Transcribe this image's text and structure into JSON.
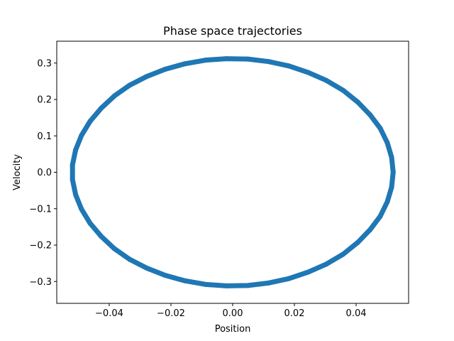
{
  "chart_data": {
    "type": "scatter",
    "title": "Phase space trajectories",
    "xlabel": "Position",
    "ylabel": "Velocity",
    "xlim": [
      -0.057,
      0.057
    ],
    "ylim": [
      -0.36,
      0.36
    ],
    "grid": false,
    "xticks": [
      {
        "value": -0.04,
        "label": "−0.04"
      },
      {
        "value": -0.02,
        "label": "−0.02"
      },
      {
        "value": 0.0,
        "label": "0.00"
      },
      {
        "value": 0.02,
        "label": "0.02"
      },
      {
        "value": 0.04,
        "label": "0.04"
      }
    ],
    "yticks": [
      {
        "value": 0.3,
        "label": "0.3"
      },
      {
        "value": 0.2,
        "label": "0.2"
      },
      {
        "value": 0.1,
        "label": "0.1"
      },
      {
        "value": 0.0,
        "label": "0.0"
      },
      {
        "value": -0.1,
        "label": "−0.1"
      },
      {
        "value": -0.2,
        "label": "−0.2"
      },
      {
        "value": -0.3,
        "label": "−0.3"
      }
    ],
    "series": [
      {
        "color": "#1f77b4",
        "points": [
          {
            "x": 0.052,
            "y": 0.0
          },
          {
            "x": 0.0515,
            "y": 0.041
          },
          {
            "x": 0.0501,
            "y": 0.081
          },
          {
            "x": 0.0478,
            "y": 0.121
          },
          {
            "x": 0.0445,
            "y": 0.158
          },
          {
            "x": 0.0405,
            "y": 0.193
          },
          {
            "x": 0.0358,
            "y": 0.225
          },
          {
            "x": 0.0304,
            "y": 0.252
          },
          {
            "x": 0.0245,
            "y": 0.274
          },
          {
            "x": 0.0182,
            "y": 0.292
          },
          {
            "x": 0.0117,
            "y": 0.304
          },
          {
            "x": 0.0049,
            "y": 0.311
          },
          {
            "x": -0.002,
            "y": 0.312
          },
          {
            "x": -0.0088,
            "y": 0.308
          },
          {
            "x": -0.0155,
            "y": 0.298
          },
          {
            "x": -0.0219,
            "y": 0.283
          },
          {
            "x": -0.0279,
            "y": 0.263
          },
          {
            "x": -0.0334,
            "y": 0.239
          },
          {
            "x": -0.0383,
            "y": 0.21
          },
          {
            "x": -0.0426,
            "y": 0.176
          },
          {
            "x": -0.0462,
            "y": 0.14
          },
          {
            "x": -0.049,
            "y": 0.101
          },
          {
            "x": -0.0509,
            "y": 0.061
          },
          {
            "x": -0.0519,
            "y": 0.02
          },
          {
            "x": -0.0519,
            "y": -0.02
          },
          {
            "x": -0.0509,
            "y": -0.061
          },
          {
            "x": -0.049,
            "y": -0.101
          },
          {
            "x": -0.0462,
            "y": -0.14
          },
          {
            "x": -0.0426,
            "y": -0.176
          },
          {
            "x": -0.0383,
            "y": -0.21
          },
          {
            "x": -0.0334,
            "y": -0.239
          },
          {
            "x": -0.0279,
            "y": -0.263
          },
          {
            "x": -0.0219,
            "y": -0.283
          },
          {
            "x": -0.0155,
            "y": -0.298
          },
          {
            "x": -0.0088,
            "y": -0.308
          },
          {
            "x": -0.002,
            "y": -0.312
          },
          {
            "x": 0.0049,
            "y": -0.311
          },
          {
            "x": 0.0117,
            "y": -0.304
          },
          {
            "x": 0.0182,
            "y": -0.292
          },
          {
            "x": 0.0245,
            "y": -0.274
          },
          {
            "x": 0.0304,
            "y": -0.252
          },
          {
            "x": 0.0358,
            "y": -0.225
          },
          {
            "x": 0.0405,
            "y": -0.193
          },
          {
            "x": 0.0445,
            "y": -0.158
          },
          {
            "x": 0.0478,
            "y": -0.121
          },
          {
            "x": 0.0501,
            "y": -0.081
          },
          {
            "x": 0.0515,
            "y": -0.041
          },
          {
            "x": 0.052,
            "y": 0.0
          }
        ]
      }
    ]
  }
}
